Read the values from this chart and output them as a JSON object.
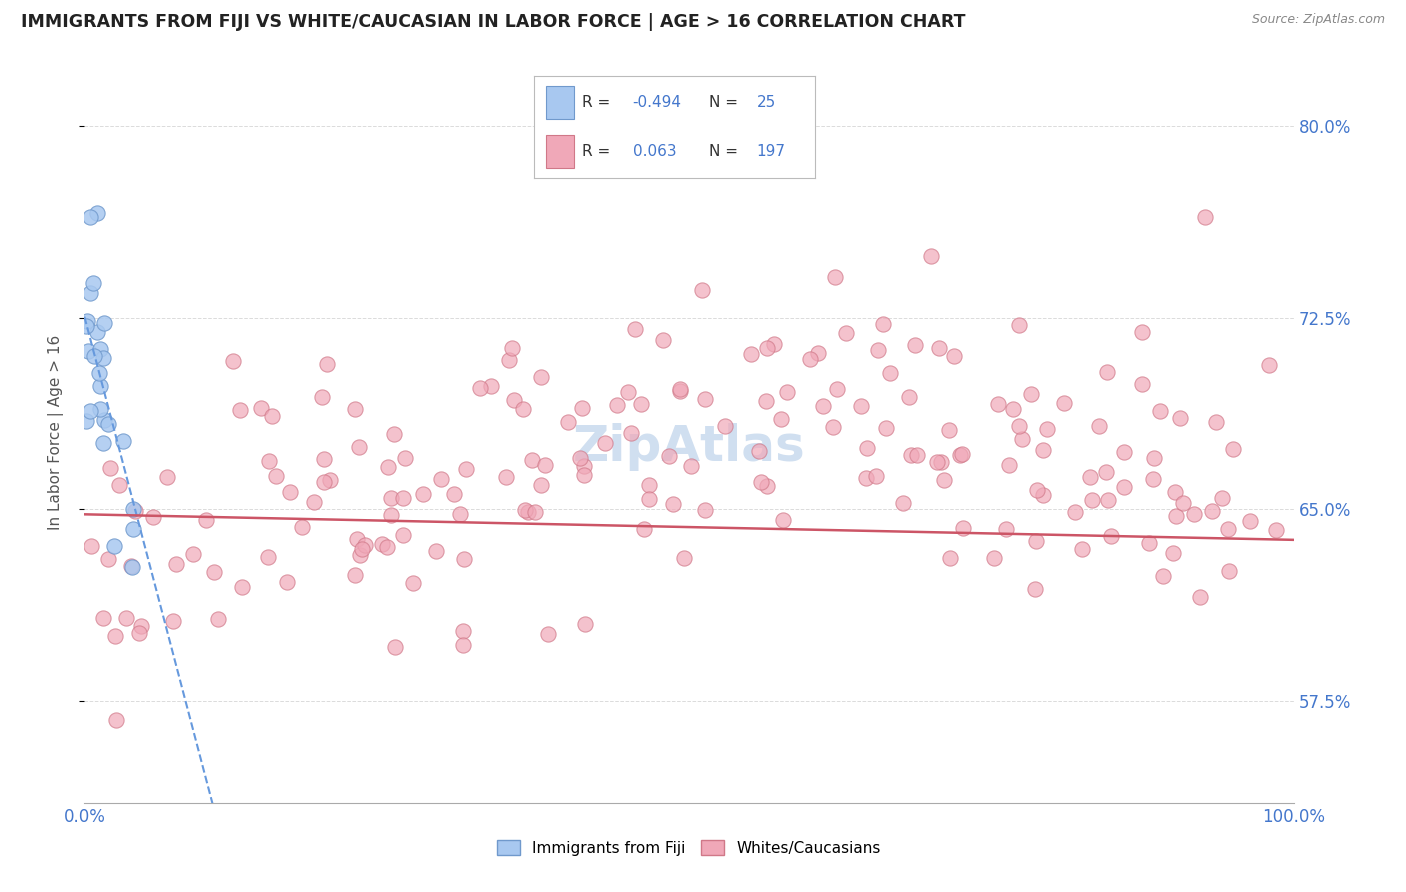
{
  "title": "IMMIGRANTS FROM FIJI VS WHITE/CAUCASIAN IN LABOR FORCE | AGE > 16 CORRELATION CHART",
  "source": "Source: ZipAtlas.com",
  "ylabel": "In Labor Force | Age > 16",
  "xlim": [
    0.0,
    1.0
  ],
  "ylim": [
    0.535,
    0.825
  ],
  "yticks": [
    0.575,
    0.65,
    0.725,
    0.8
  ],
  "ytick_labels": [
    "57.5%",
    "65.0%",
    "72.5%",
    "80.0%"
  ],
  "fiji_color": "#a8c8f0",
  "fiji_edge_color": "#7099cc",
  "white_color": "#f0a8b8",
  "white_edge_color": "#d07888",
  "fiji_R": -0.494,
  "fiji_N": 25,
  "white_R": 0.063,
  "white_N": 197,
  "trend_blue_color": "#6699dd",
  "trend_pink_color": "#cc5566",
  "background_color": "#ffffff",
  "grid_color": "#cccccc",
  "title_color": "#222222",
  "label_color": "#4477cc",
  "watermark_color": "#d0dff0"
}
